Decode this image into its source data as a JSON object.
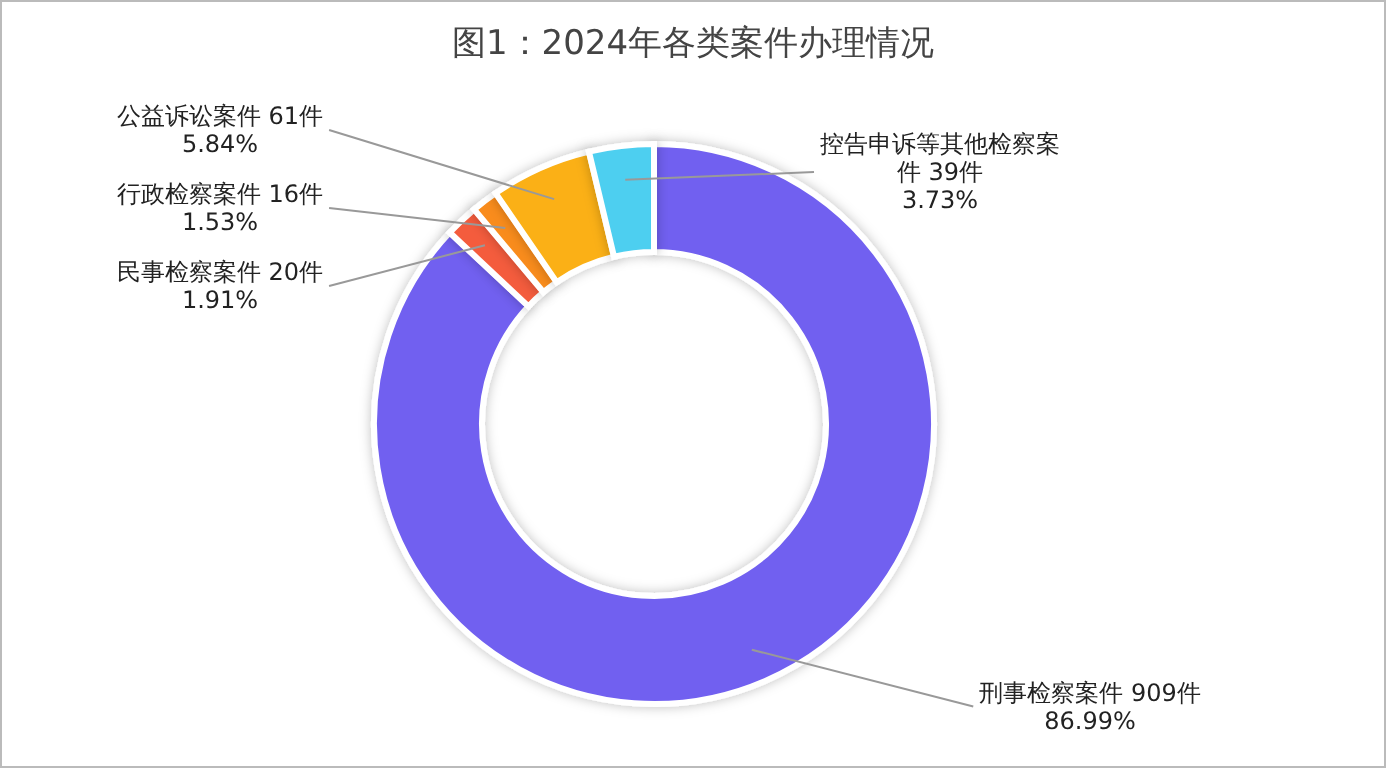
{
  "chart_data": {
    "type": "donut",
    "title": "图1：2024年各类案件办理情况",
    "categories": [
      "刑事检察案件",
      "民事检察案件",
      "行政检察案件",
      "公益诉讼案件",
      "控告申诉等其他检察案件"
    ],
    "values": [
      909,
      20,
      16,
      61,
      39
    ],
    "value_labels": [
      "909件\n86.99%",
      "20件\n1.91%",
      "16件\n1.53%",
      "61件\n5.84%",
      "39件\n3.73%"
    ],
    "colors": [
      "#7160f0",
      "#f45b3c",
      "#f98c1c",
      "#fbb014",
      "#4dcff0"
    ]
  }
}
